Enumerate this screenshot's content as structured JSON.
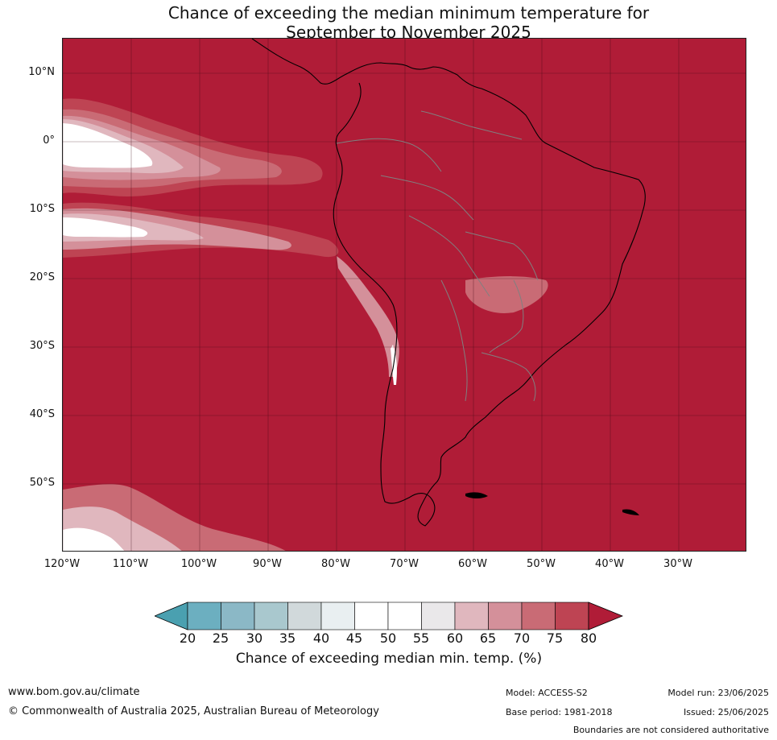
{
  "title": {
    "line1": "Chance of exceeding the median minimum temperature for",
    "line2": "September to November 2025"
  },
  "map": {
    "region": "South America",
    "lat_labels": [
      "10°N",
      "0°",
      "10°S",
      "20°S",
      "30°S",
      "40°S",
      "50°S"
    ],
    "lon_labels": [
      "120°W",
      "110°W",
      "100°W",
      "90°W",
      "80°W",
      "70°W",
      "60°W",
      "50°W",
      "40°W",
      "30°W"
    ],
    "dominant_color": "#b01c37",
    "land_border_color": "#000000",
    "country_border_color": "#808080"
  },
  "colorbar": {
    "label": "Chance of exceeding median min. temp. (%)",
    "ticks": [
      "20",
      "25",
      "30",
      "35",
      "40",
      "45",
      "50",
      "55",
      "60",
      "65",
      "70",
      "75",
      "80"
    ],
    "colors": {
      "below_20": "#4aa0b0",
      "20_25": "#6cafc0",
      "25_30": "#8bb8c6",
      "30_35": "#a9c8ce",
      "35_40": "#d1d9db",
      "40_45": "#e9eff1",
      "45_50": "#ffffff",
      "50_55": "#ffffff",
      "55_60": "#eae8ea",
      "60_65": "#e0b7be",
      "65_70": "#d4909a",
      "70_75": "#c96b75",
      "75_80": "#be4453",
      "above_80": "#b01c37"
    }
  },
  "footer": {
    "website": "www.bom.gov.au/climate",
    "copyright": "© Commonwealth of Australia 2025, Australian Bureau of Meteorology",
    "model": "Model: ACCESS-S2",
    "base_period": "Base period: 1981-2018",
    "model_run": "Model run: 23/06/2025",
    "issued": "Issued: 25/06/2025",
    "disclaimer": "Boundaries are not considered authoritative"
  }
}
